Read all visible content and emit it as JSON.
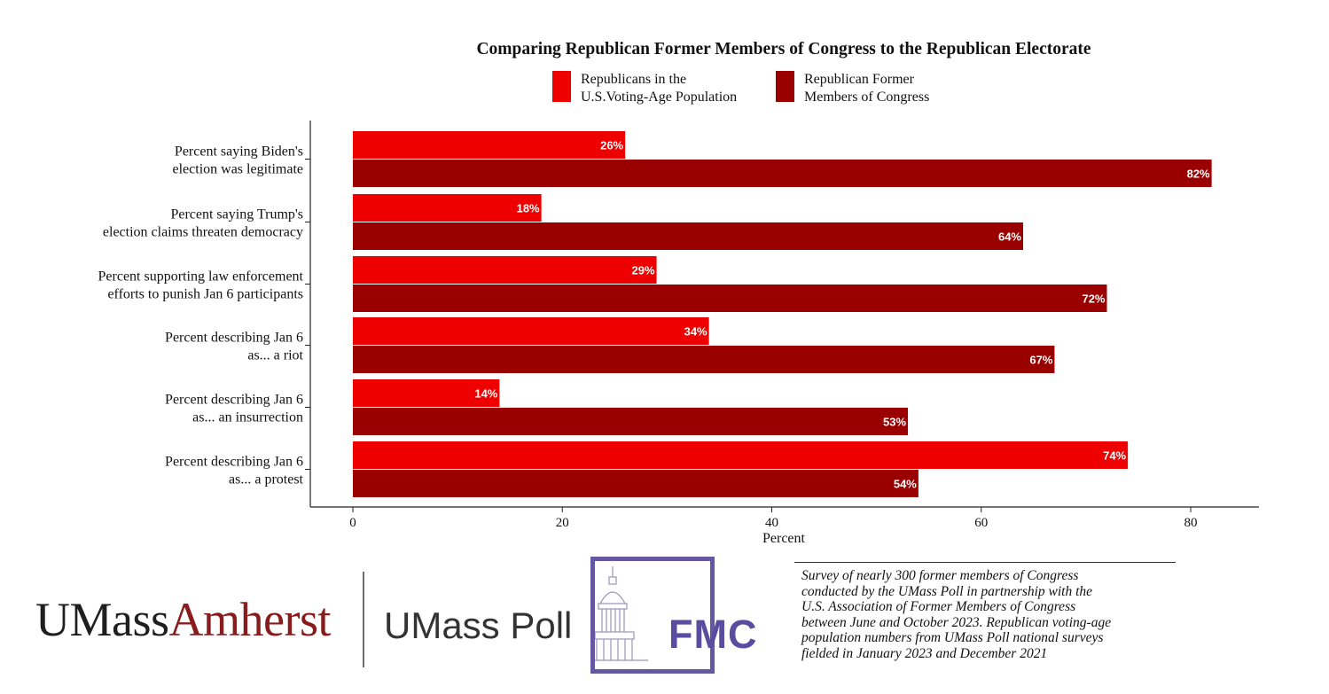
{
  "chart_data": {
    "type": "bar",
    "orientation": "horizontal",
    "title": "Comparing Republican Former Members of Congress to the Republican Electorate",
    "xlabel": "Percent",
    "ylabel": "",
    "xlim": [
      0,
      86
    ],
    "xticks": [
      0,
      20,
      40,
      60,
      80
    ],
    "grid": false,
    "legend_position": "top",
    "categories": [
      [
        "Percent saying Biden's",
        "election was legitimate"
      ],
      [
        "Percent saying Trump's",
        "election claims threaten democracy"
      ],
      [
        "Percent supporting law enforcement",
        "efforts to punish Jan 6 participants"
      ],
      [
        "Percent describing Jan 6",
        "as... a riot"
      ],
      [
        "Percent describing Jan 6",
        "as... an insurrection"
      ],
      [
        "Percent describing Jan 6",
        "as... a protest"
      ]
    ],
    "series": [
      {
        "name": [
          "Republicans in the",
          "U.S.Voting-Age Population"
        ],
        "color": "#ee0000",
        "values": [
          26,
          18,
          29,
          34,
          14,
          74
        ],
        "labels": [
          "26%",
          "18%",
          "29%",
          "34%",
          "14%",
          "74%"
        ]
      },
      {
        "name": [
          "Republican Former",
          "Members of Congress"
        ],
        "color": "#9b0000",
        "values": [
          82,
          64,
          72,
          67,
          53,
          54
        ],
        "labels": [
          "82%",
          "64%",
          "72%",
          "67%",
          "53%",
          "54%"
        ]
      }
    ]
  },
  "logos": {
    "umass": "UMass",
    "amherst": "Amherst",
    "poll": "UMass Poll",
    "fmc": "FMC",
    "fmc_color": "#5a4c9f",
    "amherst_color": "#881c1c"
  },
  "note": [
    "Survey of nearly 300 former members of Congress",
    "conducted by the UMass Poll in partnership with the",
    "U.S. Association of Former Members of Congress",
    "between June and October 2023. Republican voting-age",
    "population numbers from UMass Poll national surveys",
    "fielded in January 2023 and December 2021"
  ]
}
